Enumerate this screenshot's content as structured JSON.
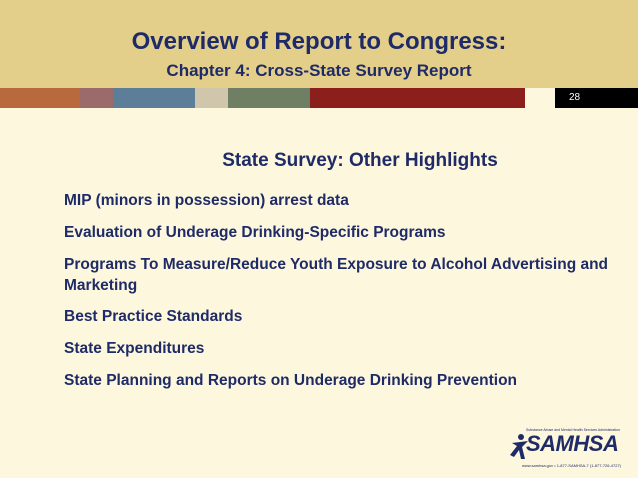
{
  "header": {
    "title": "Overview of Report to Congress:",
    "subtitle": "Chapter 4: Cross-State Survey Report",
    "page_number": "28",
    "band_colors": [
      "#b86a3e",
      "#9a6b6a",
      "#6b7f8b",
      "#5c7e98",
      "#cfc6ac",
      "#6e7f64",
      "#8b1f1c"
    ]
  },
  "main": {
    "section_title": "State Survey: Other Highlights",
    "items": [
      "MIP (minors in possession) arrest data",
      "Evaluation of Underage Drinking-Specific Programs",
      "Programs To Measure/Reduce Youth Exposure to Alcohol Advertising and Marketing",
      "Best Practice Standards",
      "State Expenditures",
      "State Planning and Reports on Underage Drinking Prevention"
    ]
  },
  "logo": {
    "text": "SAMHSA",
    "tagline": "Substance Abuse and Mental Health Services Administration",
    "contact": "www.samhsa.gov • 1-877-SAMHSA-7 (1-877-726-4727)"
  }
}
